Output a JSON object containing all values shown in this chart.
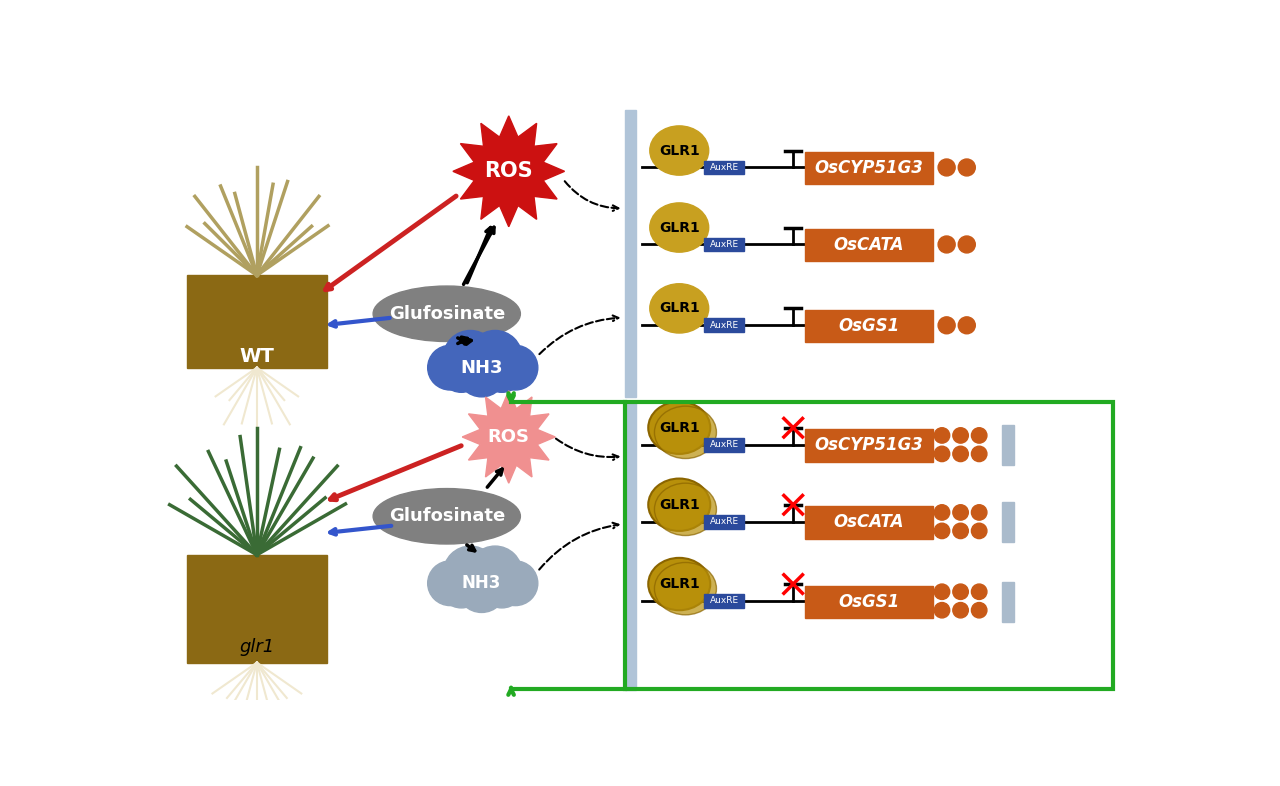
{
  "wt_label": "WT",
  "glr1_label": "glr1",
  "glufosinate_label": "Glufosinate",
  "ros_label": "ROS",
  "nh3_label": "NH3",
  "genes_top": [
    "OsCYP51G3",
    "OsCATA",
    "OsGS1"
  ],
  "genes_bot": [
    "OsCYP51G3",
    "OsCATA",
    "OsGS1"
  ],
  "glr1_circle": "GLR1",
  "auxre_label": "AuxRE",
  "gene_color": "#C85A17",
  "glr1_circle_color_top": "#C8A020",
  "glr1_circle_color_bot": "#B8900A",
  "auxre_color": "#2B4A9C",
  "glufosinate_color": "#808080",
  "ros_wt_color": "#CC1111",
  "ros_glr1_color": "#F09090",
  "nh3_wt_color": "#4466BB",
  "nh3_glr1_color": "#9AAABB",
  "green_border_color": "#22AA22",
  "arrow_red_color": "#CC2222",
  "arrow_blue_color": "#3355CC",
  "separator_color": "#B0C4D8",
  "soil_color": "#8B6914",
  "root_color": "#F0E8D0",
  "wt_grass_color": "#B0A060",
  "glr1_grass_color": "#3A6B35",
  "dot_color": "#C85A17",
  "blue_bar_color": "#AABBCC"
}
